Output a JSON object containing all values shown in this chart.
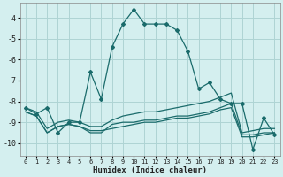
{
  "xlabel": "Humidex (Indice chaleur)",
  "xlim": [
    -0.5,
    23.5
  ],
  "ylim": [
    -10.6,
    -3.3
  ],
  "yticks": [
    -10,
    -9,
    -8,
    -7,
    -6,
    -5,
    -4
  ],
  "xticks": [
    0,
    1,
    2,
    3,
    4,
    5,
    6,
    7,
    8,
    9,
    10,
    11,
    12,
    13,
    14,
    15,
    16,
    17,
    18,
    19,
    20,
    21,
    22,
    23
  ],
  "bg_color": "#d4efef",
  "grid_color": "#aed4d4",
  "line_color": "#1a6b6b",
  "curve_x": [
    0,
    1,
    2,
    3,
    4,
    5,
    6,
    7,
    8,
    9,
    10,
    11,
    12,
    13,
    14,
    15,
    16,
    17,
    18,
    19,
    20,
    21,
    22,
    23
  ],
  "curve_y": [
    -8.3,
    -8.6,
    -8.3,
    -9.5,
    -9.0,
    -9.0,
    -6.6,
    -7.9,
    -5.4,
    -4.3,
    -3.6,
    -4.3,
    -4.3,
    -4.3,
    -4.6,
    -5.6,
    -7.4,
    -7.1,
    -7.9,
    -8.1,
    -8.1,
    -10.3,
    -8.8,
    -9.6
  ],
  "flat1_x": [
    0,
    1,
    2,
    3,
    4,
    5,
    6,
    7,
    8,
    9,
    10,
    11,
    12,
    13,
    14,
    15,
    16,
    17,
    18,
    19,
    20,
    21,
    22,
    23
  ],
  "flat1_y": [
    -8.5,
    -8.7,
    -9.5,
    -9.2,
    -9.1,
    -9.2,
    -9.4,
    -9.4,
    -9.3,
    -9.2,
    -9.1,
    -9.0,
    -9.0,
    -8.9,
    -8.8,
    -8.8,
    -8.7,
    -8.6,
    -8.4,
    -8.3,
    -9.7,
    -9.7,
    -9.6,
    -9.5
  ],
  "flat2_x": [
    0,
    1,
    2,
    3,
    4,
    5,
    6,
    7,
    8,
    9,
    10,
    11,
    12,
    13,
    14,
    15,
    16,
    17,
    18,
    19,
    20,
    21,
    22,
    23
  ],
  "flat2_y": [
    -8.5,
    -8.7,
    -9.5,
    -9.2,
    -9.1,
    -9.2,
    -9.5,
    -9.5,
    -9.1,
    -9.0,
    -9.0,
    -8.9,
    -8.9,
    -8.8,
    -8.7,
    -8.7,
    -8.6,
    -8.5,
    -8.3,
    -8.1,
    -9.6,
    -9.6,
    -9.5,
    -9.5
  ],
  "flat3_x": [
    0,
    1,
    2,
    3,
    4,
    5,
    6,
    7,
    8,
    9,
    10,
    11,
    12,
    13,
    14,
    15,
    16,
    17,
    18,
    19,
    20,
    21,
    22,
    23
  ],
  "flat3_y": [
    -8.3,
    -8.5,
    -9.3,
    -9.0,
    -8.9,
    -9.0,
    -9.2,
    -9.2,
    -8.9,
    -8.7,
    -8.6,
    -8.5,
    -8.5,
    -8.4,
    -8.3,
    -8.2,
    -8.1,
    -8.0,
    -7.8,
    -7.6,
    -9.5,
    -9.4,
    -9.3,
    -9.3
  ]
}
